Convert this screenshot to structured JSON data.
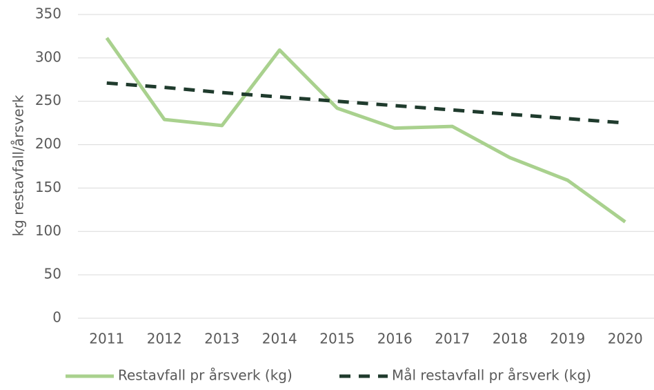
{
  "chart_data": {
    "type": "line",
    "y_label": "kg restavfall/årsverk",
    "categories": [
      "2011",
      "2012",
      "2013",
      "2014",
      "2015",
      "2016",
      "2017",
      "2018",
      "2019",
      "2020"
    ],
    "series": [
      {
        "name": "Restavfall pr årsverk (kg)",
        "color": "#a9d18e",
        "dash": false,
        "values": [
          323,
          229,
          222,
          309,
          242,
          219,
          221,
          185,
          159,
          111
        ]
      },
      {
        "name": "Mål restavfall pr årsverk (kg)",
        "color": "#1f3b2d",
        "dash": true,
        "values": [
          271,
          266,
          260,
          255,
          250,
          245,
          240,
          235,
          230,
          225
        ]
      }
    ],
    "ylim": [
      0,
      350
    ],
    "yticks": [
      0,
      50,
      100,
      150,
      200,
      250,
      300,
      350
    ],
    "grid": true,
    "legend": "bottom"
  }
}
